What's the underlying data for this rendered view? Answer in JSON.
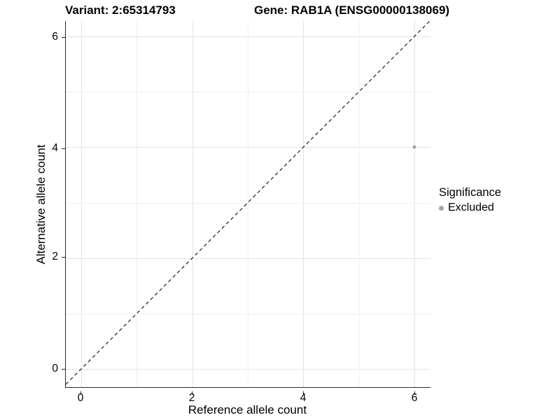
{
  "header": {
    "variant_title": "Variant: 2:65314793",
    "gene_title": "Gene: RAB1A (ENSG00000138069)"
  },
  "chart_data": {
    "type": "scatter",
    "title": "Variant: 2:65314793   Gene: RAB1A (ENSG00000138069)",
    "xlabel": "Reference allele count",
    "ylabel": "Alternative allele count",
    "xlim": [
      -0.3,
      6.3
    ],
    "ylim": [
      -0.3,
      6.3
    ],
    "x_ticks": [
      0,
      2,
      4,
      6
    ],
    "y_ticks": [
      0,
      2,
      4,
      6
    ],
    "x_tick_labels": [
      "0",
      "2",
      "4",
      "6"
    ],
    "y_tick_labels": [
      "6",
      "4",
      "2",
      "0"
    ],
    "grid": "major gridlines at 0,2,4,6 and minor at 1,3,5 (light gray on white)",
    "series": [
      {
        "name": "Excluded",
        "color": "#a6a6a6",
        "points": [
          {
            "x": 6,
            "y": 4
          }
        ]
      }
    ],
    "annotations": [
      {
        "type": "abline",
        "label": "y = x identity line",
        "style": "dashed",
        "color": "#000000"
      }
    ],
    "legend": {
      "position": "right",
      "title": "Significance",
      "entries": [
        {
          "label": "Excluded",
          "marker_color": "#a6a6a6"
        }
      ]
    }
  },
  "colors": {
    "background": "#ffffff",
    "point": "#a6a6a6",
    "grid_major": "#e3e3e3",
    "grid_minor": "#f0f0f0",
    "axis_line": "#2b2b2b",
    "reference_line": "#000000",
    "text": "#000000"
  }
}
